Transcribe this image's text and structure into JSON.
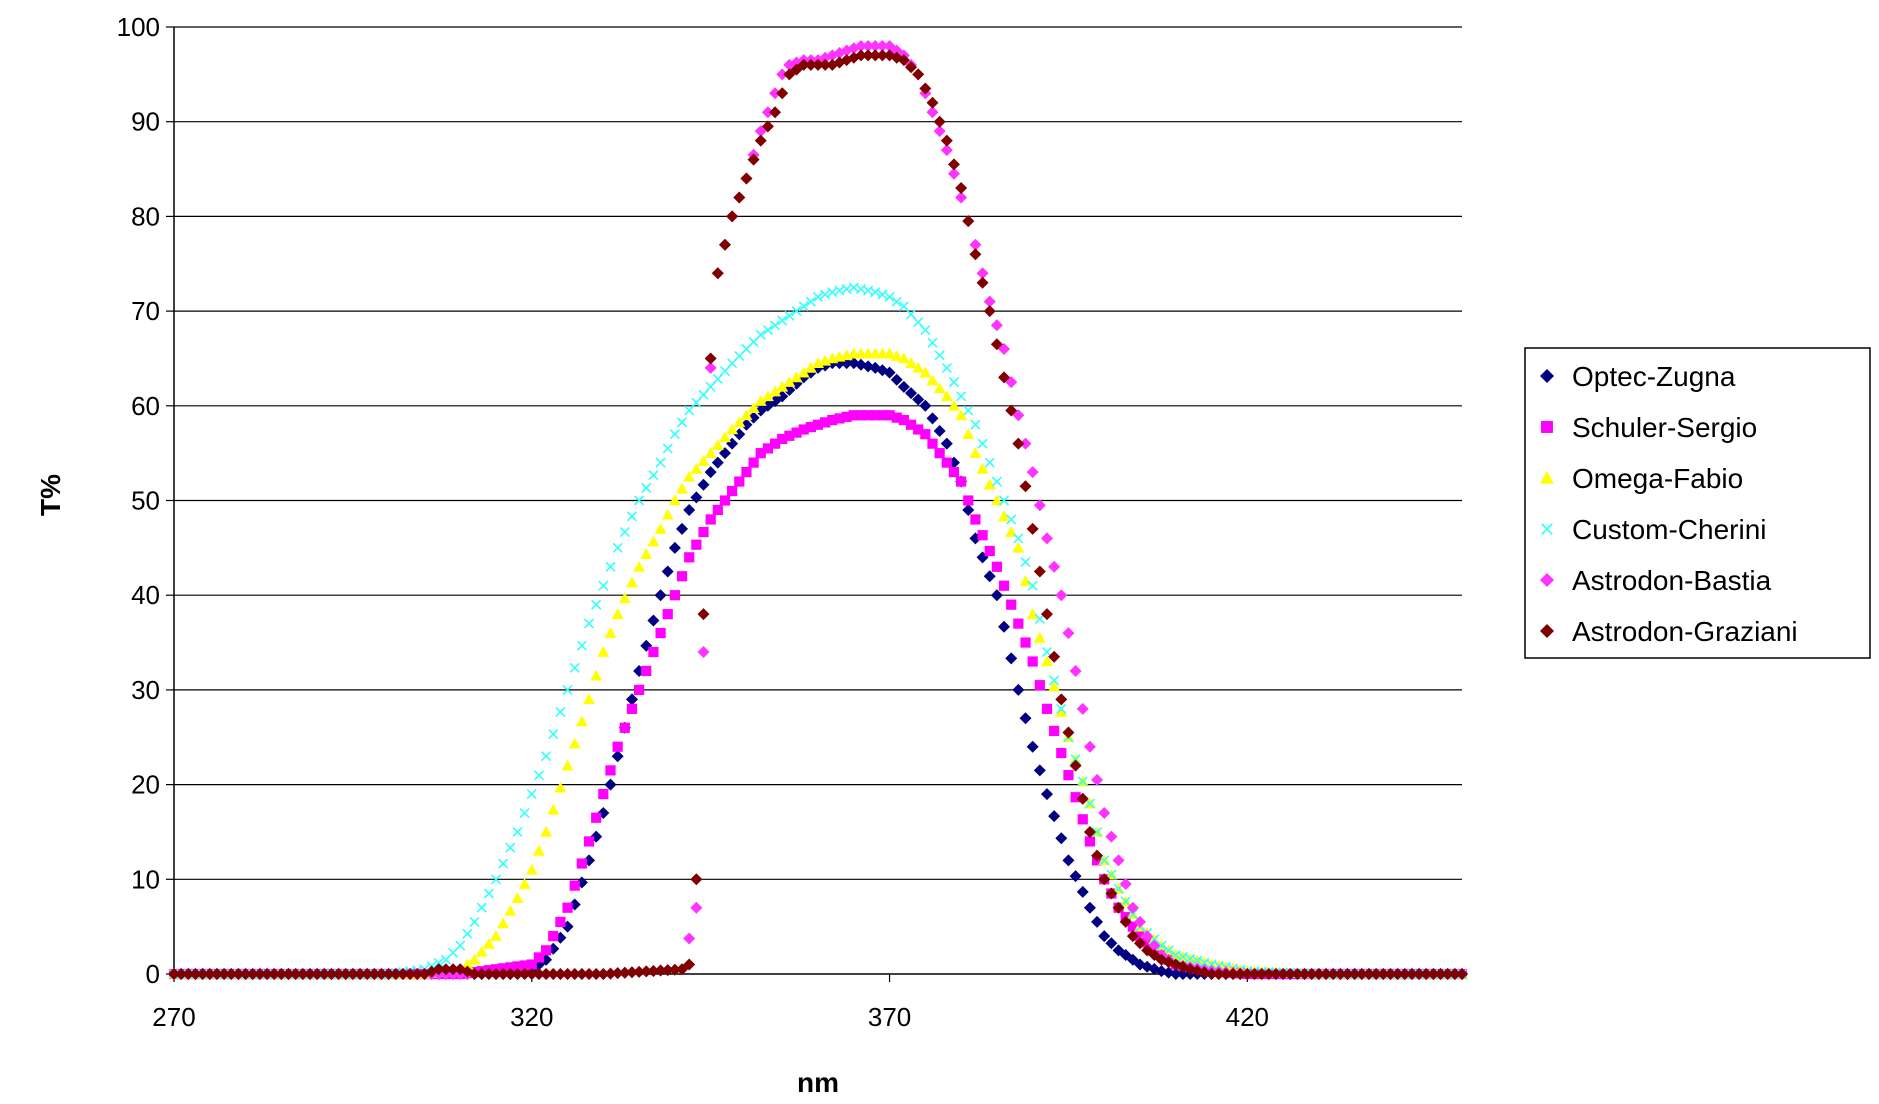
{
  "chart_data": {
    "type": "scatter",
    "title": "",
    "xlabel": "nm",
    "ylabel": "T%",
    "xlim": [
      270,
      450
    ],
    "ylim": [
      0,
      100
    ],
    "xticks": [
      270,
      320,
      370,
      420
    ],
    "yticks": [
      0,
      10,
      20,
      30,
      40,
      50,
      60,
      70,
      80,
      90,
      100
    ],
    "grid": "horizontal",
    "legend_position": "right",
    "series": [
      {
        "name": "Optec-Zugna",
        "color": "#000080",
        "marker": "diamond",
        "x": [
          270,
          290,
          310,
          318,
          320,
          322,
          325,
          328,
          330,
          332,
          335,
          338,
          340,
          342,
          345,
          348,
          350,
          352,
          355,
          358,
          360,
          362,
          365,
          368,
          370,
          372,
          375,
          378,
          380,
          382,
          385,
          388,
          390,
          392,
          395,
          398,
          400,
          402,
          405,
          408,
          410,
          415,
          420,
          430,
          440,
          450
        ],
        "y": [
          0,
          0,
          0,
          0,
          0.5,
          1.5,
          5,
          12,
          17,
          23,
          32,
          40,
          45,
          49,
          53,
          56,
          58,
          59.5,
          61,
          63,
          64,
          64.5,
          64.5,
          64,
          63.5,
          62,
          60,
          56,
          52,
          46,
          40,
          30,
          24,
          19,
          12,
          7,
          4,
          2.5,
          1,
          0.3,
          0,
          0,
          0,
          0,
          0,
          0
        ]
      },
      {
        "name": "Schuler-Sergio",
        "color": "#ff00ff",
        "marker": "square",
        "x": [
          270,
          290,
          310,
          320,
          322,
          325,
          328,
          330,
          332,
          335,
          338,
          340,
          342,
          345,
          348,
          350,
          352,
          355,
          358,
          360,
          362,
          365,
          368,
          370,
          372,
          375,
          378,
          380,
          382,
          385,
          388,
          390,
          392,
          395,
          398,
          400,
          402,
          405,
          408,
          410,
          415,
          420,
          430,
          440,
          450
        ],
        "y": [
          0,
          0,
          0,
          1,
          2.5,
          7,
          14,
          19,
          24,
          30,
          36,
          40,
          44,
          48,
          51,
          53,
          55,
          56.5,
          57.5,
          58,
          58.5,
          59,
          59,
          59,
          58.5,
          57,
          54,
          52,
          48,
          43,
          37,
          33,
          28,
          21,
          14,
          10,
          7,
          4,
          2,
          1,
          0.3,
          0,
          0,
          0,
          0
        ]
      },
      {
        "name": "Omega-Fabio",
        "color": "#ffff00",
        "marker": "triangle",
        "x": [
          270,
          290,
          305,
          310,
          312,
          315,
          318,
          320,
          322,
          325,
          328,
          330,
          332,
          335,
          338,
          340,
          342,
          345,
          348,
          350,
          352,
          355,
          358,
          360,
          362,
          365,
          368,
          370,
          372,
          375,
          378,
          380,
          382,
          385,
          388,
          390,
          392,
          395,
          398,
          400,
          402,
          405,
          408,
          410,
          415,
          420,
          430,
          440,
          450
        ],
        "y": [
          0,
          0,
          0,
          0.5,
          1.5,
          4,
          8,
          11,
          15,
          22,
          29,
          34,
          38,
          43,
          47,
          50,
          52.5,
          55,
          57.5,
          59,
          60.5,
          62,
          63.5,
          64.5,
          65,
          65.5,
          65.5,
          65.5,
          65,
          63.5,
          61,
          59,
          55,
          50,
          45,
          38,
          33,
          25,
          18,
          12,
          9,
          5,
          3,
          2,
          1,
          0.3,
          0,
          0,
          0
        ]
      },
      {
        "name": "Custom-Cherini",
        "color": "#33ffff",
        "marker": "x",
        "x": [
          270,
          290,
          300,
          305,
          308,
          310,
          312,
          315,
          318,
          320,
          322,
          325,
          328,
          330,
          332,
          335,
          338,
          340,
          342,
          345,
          348,
          350,
          352,
          355,
          358,
          360,
          362,
          365,
          368,
          370,
          372,
          375,
          378,
          380,
          382,
          385,
          388,
          390,
          392,
          395,
          398,
          400,
          402,
          405,
          408,
          410,
          415,
          420,
          430,
          440,
          450
        ],
        "y": [
          0,
          0,
          0,
          0.5,
          1.5,
          3,
          5.5,
          10,
          15,
          19,
          23,
          30,
          37,
          41,
          45,
          50,
          54,
          57,
          59.5,
          62,
          64.5,
          66,
          67.5,
          69,
          70.5,
          71.5,
          72,
          72.5,
          72,
          71.5,
          70.5,
          68,
          64,
          61,
          58,
          52,
          46,
          41,
          34,
          25,
          18,
          12,
          9,
          5,
          3,
          2,
          1,
          0.3,
          0,
          0,
          0
        ]
      },
      {
        "name": "Astrodon-Bastia",
        "color": "#ff33ff",
        "marker": "diamond",
        "x": [
          270,
          290,
          310,
          330,
          341,
          343,
          344,
          345,
          346,
          347,
          348,
          350,
          352,
          354,
          355,
          356,
          358,
          360,
          362,
          364,
          366,
          368,
          370,
          372,
          374,
          376,
          378,
          380,
          382,
          384,
          386,
          388,
          390,
          392,
          394,
          396,
          398,
          400,
          402,
          404,
          406,
          408,
          410,
          415,
          420,
          430,
          440,
          450
        ],
        "y": [
          0,
          0,
          0,
          0,
          0.5,
          7,
          34,
          64,
          74,
          77,
          80,
          84,
          89,
          93,
          95,
          96,
          96.5,
          96.5,
          97,
          97.5,
          98,
          98,
          98,
          97,
          95,
          91,
          87,
          82,
          77,
          71,
          66,
          59,
          53,
          46,
          40,
          32,
          24,
          17,
          12,
          7,
          4,
          2,
          1,
          0.3,
          0,
          0,
          0,
          0
        ]
      },
      {
        "name": "Astrodon-Graziani",
        "color": "#800000",
        "marker": "diamond",
        "x": [
          270,
          290,
          300,
          305,
          307,
          310,
          312,
          315,
          330,
          341,
          342,
          343,
          344,
          345,
          346,
          347,
          348,
          350,
          352,
          354,
          355,
          356,
          358,
          360,
          362,
          364,
          366,
          368,
          370,
          372,
          374,
          376,
          378,
          380,
          382,
          384,
          386,
          388,
          390,
          392,
          394,
          396,
          398,
          400,
          402,
          404,
          406,
          408,
          410,
          412,
          415,
          420,
          430,
          440,
          450
        ],
        "y": [
          0,
          0,
          0,
          0,
          0.5,
          0.5,
          0,
          0,
          0,
          0.5,
          1,
          10,
          38,
          65,
          74,
          77,
          80,
          84,
          88,
          91,
          93,
          95,
          96,
          96,
          96,
          96.5,
          97,
          97,
          97,
          96.5,
          95,
          92,
          88,
          83,
          76,
          70,
          63,
          56,
          47,
          38,
          29,
          22,
          15,
          10,
          7,
          4,
          2.5,
          1.5,
          1,
          0.5,
          0,
          0,
          0,
          0,
          0
        ]
      }
    ]
  }
}
